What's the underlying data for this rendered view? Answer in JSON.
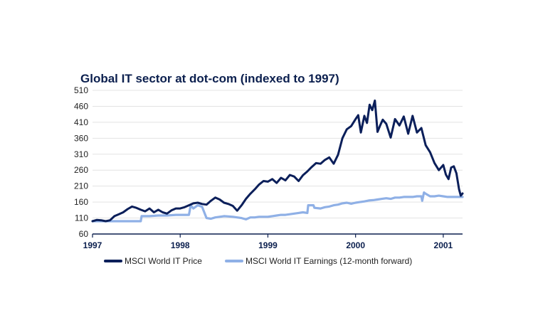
{
  "chart_data": {
    "type": "line",
    "title": "Global IT sector at dot-com (indexed to 1997)",
    "xlabel": "",
    "ylabel": "",
    "xlim": [
      1997.0,
      2001.22
    ],
    "ylim": [
      60,
      510
    ],
    "yticks": [
      60,
      110,
      160,
      210,
      260,
      310,
      360,
      410,
      460,
      510
    ],
    "xticks": [
      {
        "label": "1997",
        "value": 1997.0
      },
      {
        "label": "1998",
        "value": 1998.0
      },
      {
        "label": "1999",
        "value": 1999.0
      },
      {
        "label": "2000",
        "value": 2000.0
      },
      {
        "label": "2001",
        "value": 2001.0
      }
    ],
    "grid": true,
    "legend": "bottom",
    "series": [
      {
        "name": "MSCI World IT Price",
        "color": "#0b1f5a",
        "x": [
          1997.0,
          1997.05,
          1997.1,
          1997.15,
          1997.2,
          1997.25,
          1997.3,
          1997.35,
          1997.4,
          1997.45,
          1997.5,
          1997.55,
          1997.6,
          1997.65,
          1997.7,
          1997.75,
          1997.8,
          1997.85,
          1997.9,
          1997.95,
          1998.0,
          1998.05,
          1998.1,
          1998.15,
          1998.2,
          1998.25,
          1998.3,
          1998.35,
          1998.4,
          1998.45,
          1998.5,
          1998.55,
          1998.6,
          1998.65,
          1998.7,
          1998.75,
          1998.8,
          1998.85,
          1998.9,
          1998.95,
          1999.0,
          1999.05,
          1999.1,
          1999.15,
          1999.2,
          1999.25,
          1999.3,
          1999.35,
          1999.4,
          1999.45,
          1999.5,
          1999.55,
          1999.6,
          1999.65,
          1999.7,
          1999.75,
          1999.8,
          1999.85,
          1999.9,
          1999.95,
          2000.0,
          2000.03,
          2000.06,
          2000.1,
          2000.13,
          2000.16,
          2000.19,
          2000.22,
          2000.25,
          2000.28,
          2000.31,
          2000.35,
          2000.4,
          2000.45,
          2000.5,
          2000.55,
          2000.6,
          2000.65,
          2000.7,
          2000.75,
          2000.8,
          2000.85,
          2000.9,
          2000.95,
          2001.0,
          2001.03,
          2001.06,
          2001.09,
          2001.12,
          2001.15,
          2001.18,
          2001.2,
          2001.22
        ],
        "values": [
          100,
          104,
          103,
          100,
          103,
          116,
          122,
          128,
          138,
          146,
          142,
          136,
          131,
          140,
          128,
          136,
          128,
          124,
          134,
          140,
          140,
          144,
          150,
          156,
          158,
          154,
          152,
          164,
          174,
          168,
          158,
          154,
          148,
          133,
          150,
          170,
          186,
          200,
          215,
          226,
          224,
          232,
          220,
          236,
          228,
          245,
          240,
          226,
          244,
          256,
          270,
          282,
          280,
          292,
          300,
          280,
          308,
          360,
          388,
          398,
          420,
          432,
          378,
          430,
          408,
          465,
          448,
          478,
          380,
          400,
          418,
          405,
          362,
          420,
          400,
          428,
          374,
          430,
          378,
          392,
          338,
          316,
          282,
          260,
          276,
          246,
          232,
          268,
          272,
          250,
          200,
          180,
          187
        ]
      },
      {
        "name": "MSCI World IT Earnings (12-month forward)",
        "color": "#8fb0e6",
        "x": [
          1997.0,
          1997.1,
          1997.2,
          1997.3,
          1997.45,
          1997.55,
          1997.56,
          1997.65,
          1997.75,
          1997.85,
          1997.95,
          1998.0,
          1998.05,
          1998.1,
          1998.12,
          1998.15,
          1998.2,
          1998.25,
          1998.3,
          1998.35,
          1998.4,
          1998.45,
          1998.5,
          1998.55,
          1998.6,
          1998.65,
          1998.7,
          1998.75,
          1998.8,
          1998.85,
          1998.9,
          1998.95,
          1999.0,
          1999.05,
          1999.1,
          1999.15,
          1999.2,
          1999.25,
          1999.3,
          1999.35,
          1999.4,
          1999.45,
          1999.46,
          1999.52,
          1999.53,
          1999.6,
          1999.65,
          1999.7,
          1999.75,
          1999.8,
          1999.85,
          1999.9,
          1999.95,
          2000.0,
          2000.05,
          2000.1,
          2000.15,
          2000.2,
          2000.25,
          2000.3,
          2000.35,
          2000.4,
          2000.45,
          2000.5,
          2000.55,
          2000.6,
          2000.65,
          2000.7,
          2000.75,
          2000.76,
          2000.78,
          2000.8,
          2000.85,
          2000.9,
          2000.95,
          2001.0,
          2001.05,
          2001.1,
          2001.15,
          2001.22
        ],
        "values": [
          100,
          100,
          100,
          100,
          100,
          100,
          116,
          116,
          118,
          118,
          120,
          120,
          120,
          120,
          150,
          140,
          150,
          145,
          110,
          108,
          112,
          114,
          116,
          115,
          114,
          112,
          110,
          106,
          112,
          112,
          114,
          114,
          114,
          116,
          118,
          120,
          120,
          122,
          124,
          126,
          128,
          126,
          150,
          150,
          142,
          140,
          144,
          146,
          150,
          152,
          156,
          158,
          155,
          158,
          160,
          162,
          165,
          166,
          168,
          170,
          172,
          170,
          174,
          174,
          176,
          176,
          176,
          178,
          178,
          164,
          190,
          186,
          178,
          178,
          180,
          178,
          176,
          176,
          176,
          176
        ]
      }
    ]
  }
}
